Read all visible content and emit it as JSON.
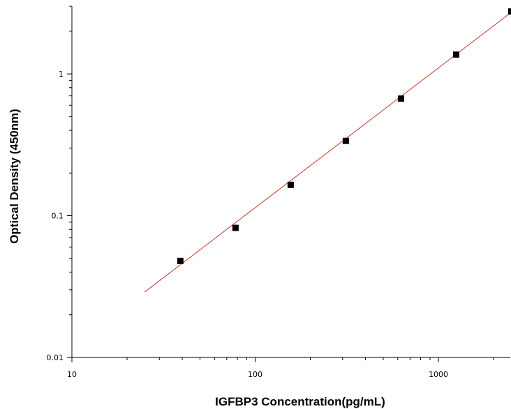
{
  "chart_data": {
    "type": "scatter",
    "title": "",
    "xlabel": "IGFBP3  Concentration(pg/mL)",
    "ylabel": "Optical Density (450nm)",
    "xscale": "log",
    "yscale": "log",
    "xlim": [
      10,
      2500
    ],
    "ylim": [
      0.01,
      3
    ],
    "x_ticks": [
      {
        "value": 10,
        "label": "10"
      },
      {
        "value": 100,
        "label": "100"
      },
      {
        "value": 1000,
        "label": "1000"
      }
    ],
    "y_ticks": [
      {
        "value": 0.01,
        "label": "0.01"
      },
      {
        "value": 0.1,
        "label": "0.1"
      },
      {
        "value": 1,
        "label": "1"
      }
    ],
    "grid": false,
    "legend": "none",
    "points": [
      {
        "x": 39.06,
        "y": 0.048
      },
      {
        "x": 78.13,
        "y": 0.082
      },
      {
        "x": 156.25,
        "y": 0.165
      },
      {
        "x": 312.5,
        "y": 0.337
      },
      {
        "x": 625,
        "y": 0.67
      },
      {
        "x": 1250,
        "y": 1.37
      },
      {
        "x": 2500,
        "y": 2.76
      }
    ],
    "fit_line": {
      "x": [
        25,
        2500
      ],
      "y": [
        0.029,
        2.72
      ]
    },
    "colors": {
      "points": "#000000",
      "fit_line": "#c0392b",
      "axes": "#000000"
    }
  }
}
